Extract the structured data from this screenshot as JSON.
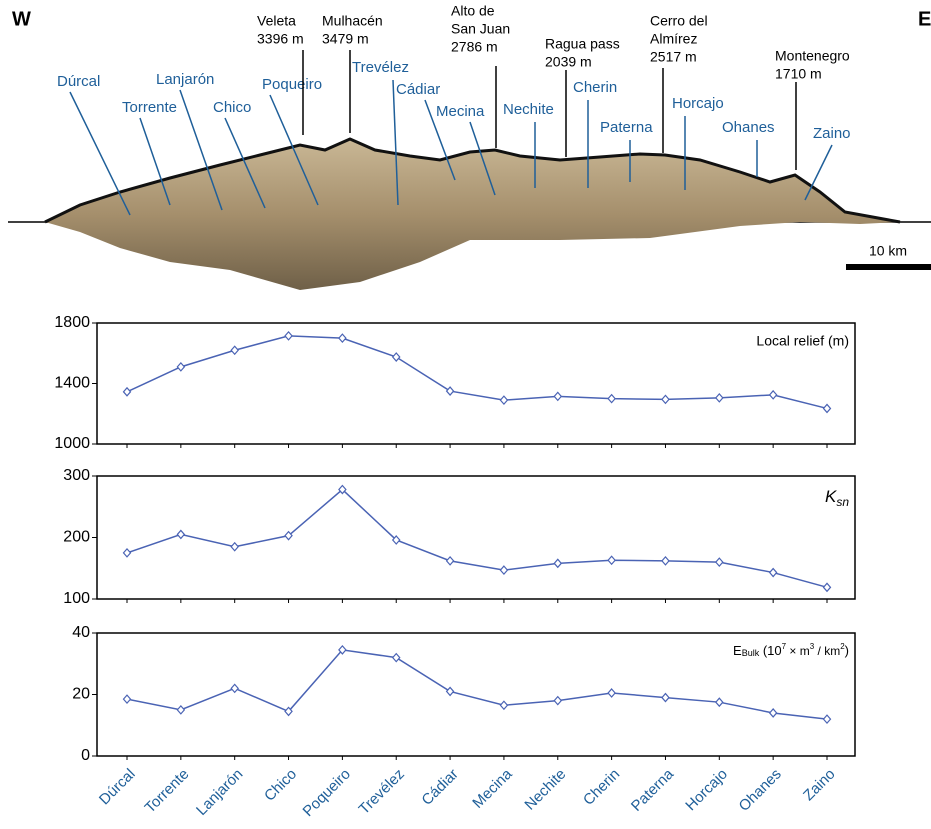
{
  "profile": {
    "west": "W",
    "east": "E",
    "scale": "10 km",
    "valleys": [
      "Dúrcal",
      "Torrente",
      "Lanjarón",
      "Chico",
      "Poqueiro",
      "Trevélez",
      "Cádiar",
      "Mecina",
      "Nechite",
      "Cherin",
      "Paterna",
      "Horcajo",
      "Ohanes",
      "Zaino"
    ],
    "peaks": [
      {
        "name": [
          "Veleta"
        ],
        "elevation": "3396 m"
      },
      {
        "name": [
          "Mulhacén"
        ],
        "elevation": "3479 m"
      },
      {
        "name": [
          "Alto de",
          "San Juan"
        ],
        "elevation": "2786 m"
      },
      {
        "name": [
          "Ragua pass"
        ],
        "elevation": "2039 m"
      },
      {
        "name": [
          "Cerro del",
          "Almírez"
        ],
        "elevation": "2517 m"
      },
      {
        "name": [
          "Montenegro"
        ],
        "elevation": "1710 m"
      }
    ]
  },
  "chart_data": [
    {
      "type": "line",
      "title": "Local relief (m)",
      "color": "#4a63b4",
      "values": [
        1345,
        1510,
        1620,
        1715,
        1700,
        1575,
        1350,
        1290,
        1315,
        1300,
        1295,
        1305,
        1325,
        1235
      ],
      "ylim": [
        1000,
        1800
      ],
      "yticks": [
        1000,
        1400,
        1800
      ]
    },
    {
      "type": "line",
      "title": [
        "K",
        "sn"
      ],
      "color": "#4a63b4",
      "values": [
        175,
        205,
        185,
        203,
        278,
        196,
        162,
        147,
        158,
        163,
        162,
        160,
        143,
        119
      ],
      "ylim": [
        100,
        300
      ],
      "yticks": [
        100,
        200,
        300
      ]
    },
    {
      "type": "line",
      "title": [
        "E",
        "Bulk",
        " (10",
        "7",
        " × m",
        "3",
        " / km",
        "2",
        ")"
      ],
      "color": "#4a63b4",
      "categories": [
        "Dúrcal",
        "Torrente",
        "Lanjarón",
        "Chico",
        "Poqueiro",
        "Trevélez",
        "Cádiar",
        "Mecina",
        "Nechite",
        "Cherin",
        "Paterna",
        "Horcajo",
        "Ohanes",
        "Zaino"
      ],
      "values": [
        18.5,
        15,
        22,
        14.5,
        34.5,
        32,
        21,
        16.5,
        18,
        20.5,
        19,
        17.5,
        14,
        12
      ],
      "ylim": [
        0,
        40
      ],
      "yticks": [
        0,
        20,
        40
      ]
    }
  ]
}
